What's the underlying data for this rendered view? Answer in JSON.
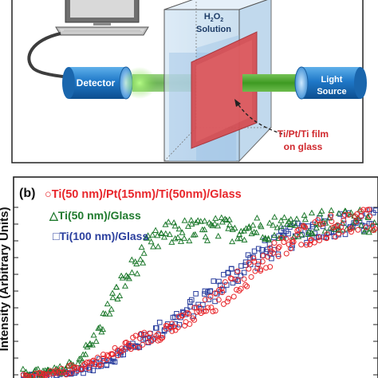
{
  "panel_a": {
    "detector_label": "Detector",
    "solution_label_line1": "H",
    "solution_label_sub": "2",
    "solution_label_mid": "O",
    "solution_label_sub2": "2",
    "solution_label_line2": "Solution",
    "light_source_line1": "Light",
    "light_source_line2": "Source",
    "film_label_line1": "Ti/Pt/Ti film",
    "film_label_line2": "on glass"
  },
  "panel_b": {
    "panel_tag": "(b)",
    "ylabel": "Intensity (Arbitrary Units)",
    "legend": [
      {
        "marker": "○",
        "text": "Ti(50 nm)/Pt(15nm)/Ti(50nm)/Glass",
        "color": "#e8262b"
      },
      {
        "marker": "△",
        "text": "Ti(50 nm)/Glass",
        "color": "#1f7a2e"
      },
      {
        "marker": "□",
        "text": "Ti(100 nm)/Glass",
        "color": "#2b3f9e"
      }
    ]
  },
  "colors": {
    "red": "#e8262b",
    "green": "#1f7a2e",
    "blue": "#2b3f9e",
    "cylinder": "#1f78c8",
    "beam": "#4caa2a",
    "film": "#d64a4f"
  },
  "chart_data": {
    "type": "scatter",
    "title": "",
    "xlabel": "",
    "ylabel": "Intensity (Arbitrary Units)",
    "series": [
      {
        "name": "Ti(50 nm)/Pt(15nm)/Ti(50nm)/Glass",
        "marker": "circle",
        "color": "#e8262b",
        "x": [
          0.0,
          0.05,
          0.1,
          0.15,
          0.2,
          0.25,
          0.3,
          0.35,
          0.4,
          0.45,
          0.5,
          0.55,
          0.6,
          0.65,
          0.7,
          0.75,
          0.8,
          0.85,
          0.9,
          0.95,
          1.0
        ],
        "y": [
          0.0,
          0.0,
          0.02,
          0.05,
          0.08,
          0.12,
          0.18,
          0.22,
          0.26,
          0.3,
          0.36,
          0.42,
          0.52,
          0.6,
          0.68,
          0.74,
          0.8,
          0.84,
          0.86,
          0.87,
          0.88
        ]
      },
      {
        "name": "Ti(50 nm)/Glass",
        "marker": "triangle",
        "color": "#1f7a2e",
        "x": [
          0.0,
          0.05,
          0.1,
          0.15,
          0.2,
          0.25,
          0.3,
          0.35,
          0.4,
          0.45,
          0.5,
          0.55,
          0.6,
          0.65,
          0.7,
          0.75,
          0.8,
          0.85,
          0.9,
          0.95,
          1.0
        ],
        "y": [
          0.02,
          0.02,
          0.03,
          0.08,
          0.2,
          0.42,
          0.58,
          0.72,
          0.8,
          0.82,
          0.82,
          0.83,
          0.83,
          0.84,
          0.84,
          0.85,
          0.86,
          0.87,
          0.87,
          0.88,
          0.88
        ]
      },
      {
        "name": "Ti(100 nm)/Glass",
        "marker": "square",
        "color": "#2b3f9e",
        "x": [
          0.0,
          0.05,
          0.1,
          0.15,
          0.2,
          0.25,
          0.3,
          0.35,
          0.4,
          0.45,
          0.5,
          0.55,
          0.6,
          0.65,
          0.7,
          0.75,
          0.8,
          0.85,
          0.9,
          0.95,
          1.0
        ],
        "y": [
          0.0,
          0.0,
          0.01,
          0.03,
          0.06,
          0.1,
          0.16,
          0.22,
          0.28,
          0.34,
          0.42,
          0.5,
          0.58,
          0.66,
          0.72,
          0.78,
          0.82,
          0.85,
          0.86,
          0.87,
          0.88
        ]
      }
    ]
  }
}
